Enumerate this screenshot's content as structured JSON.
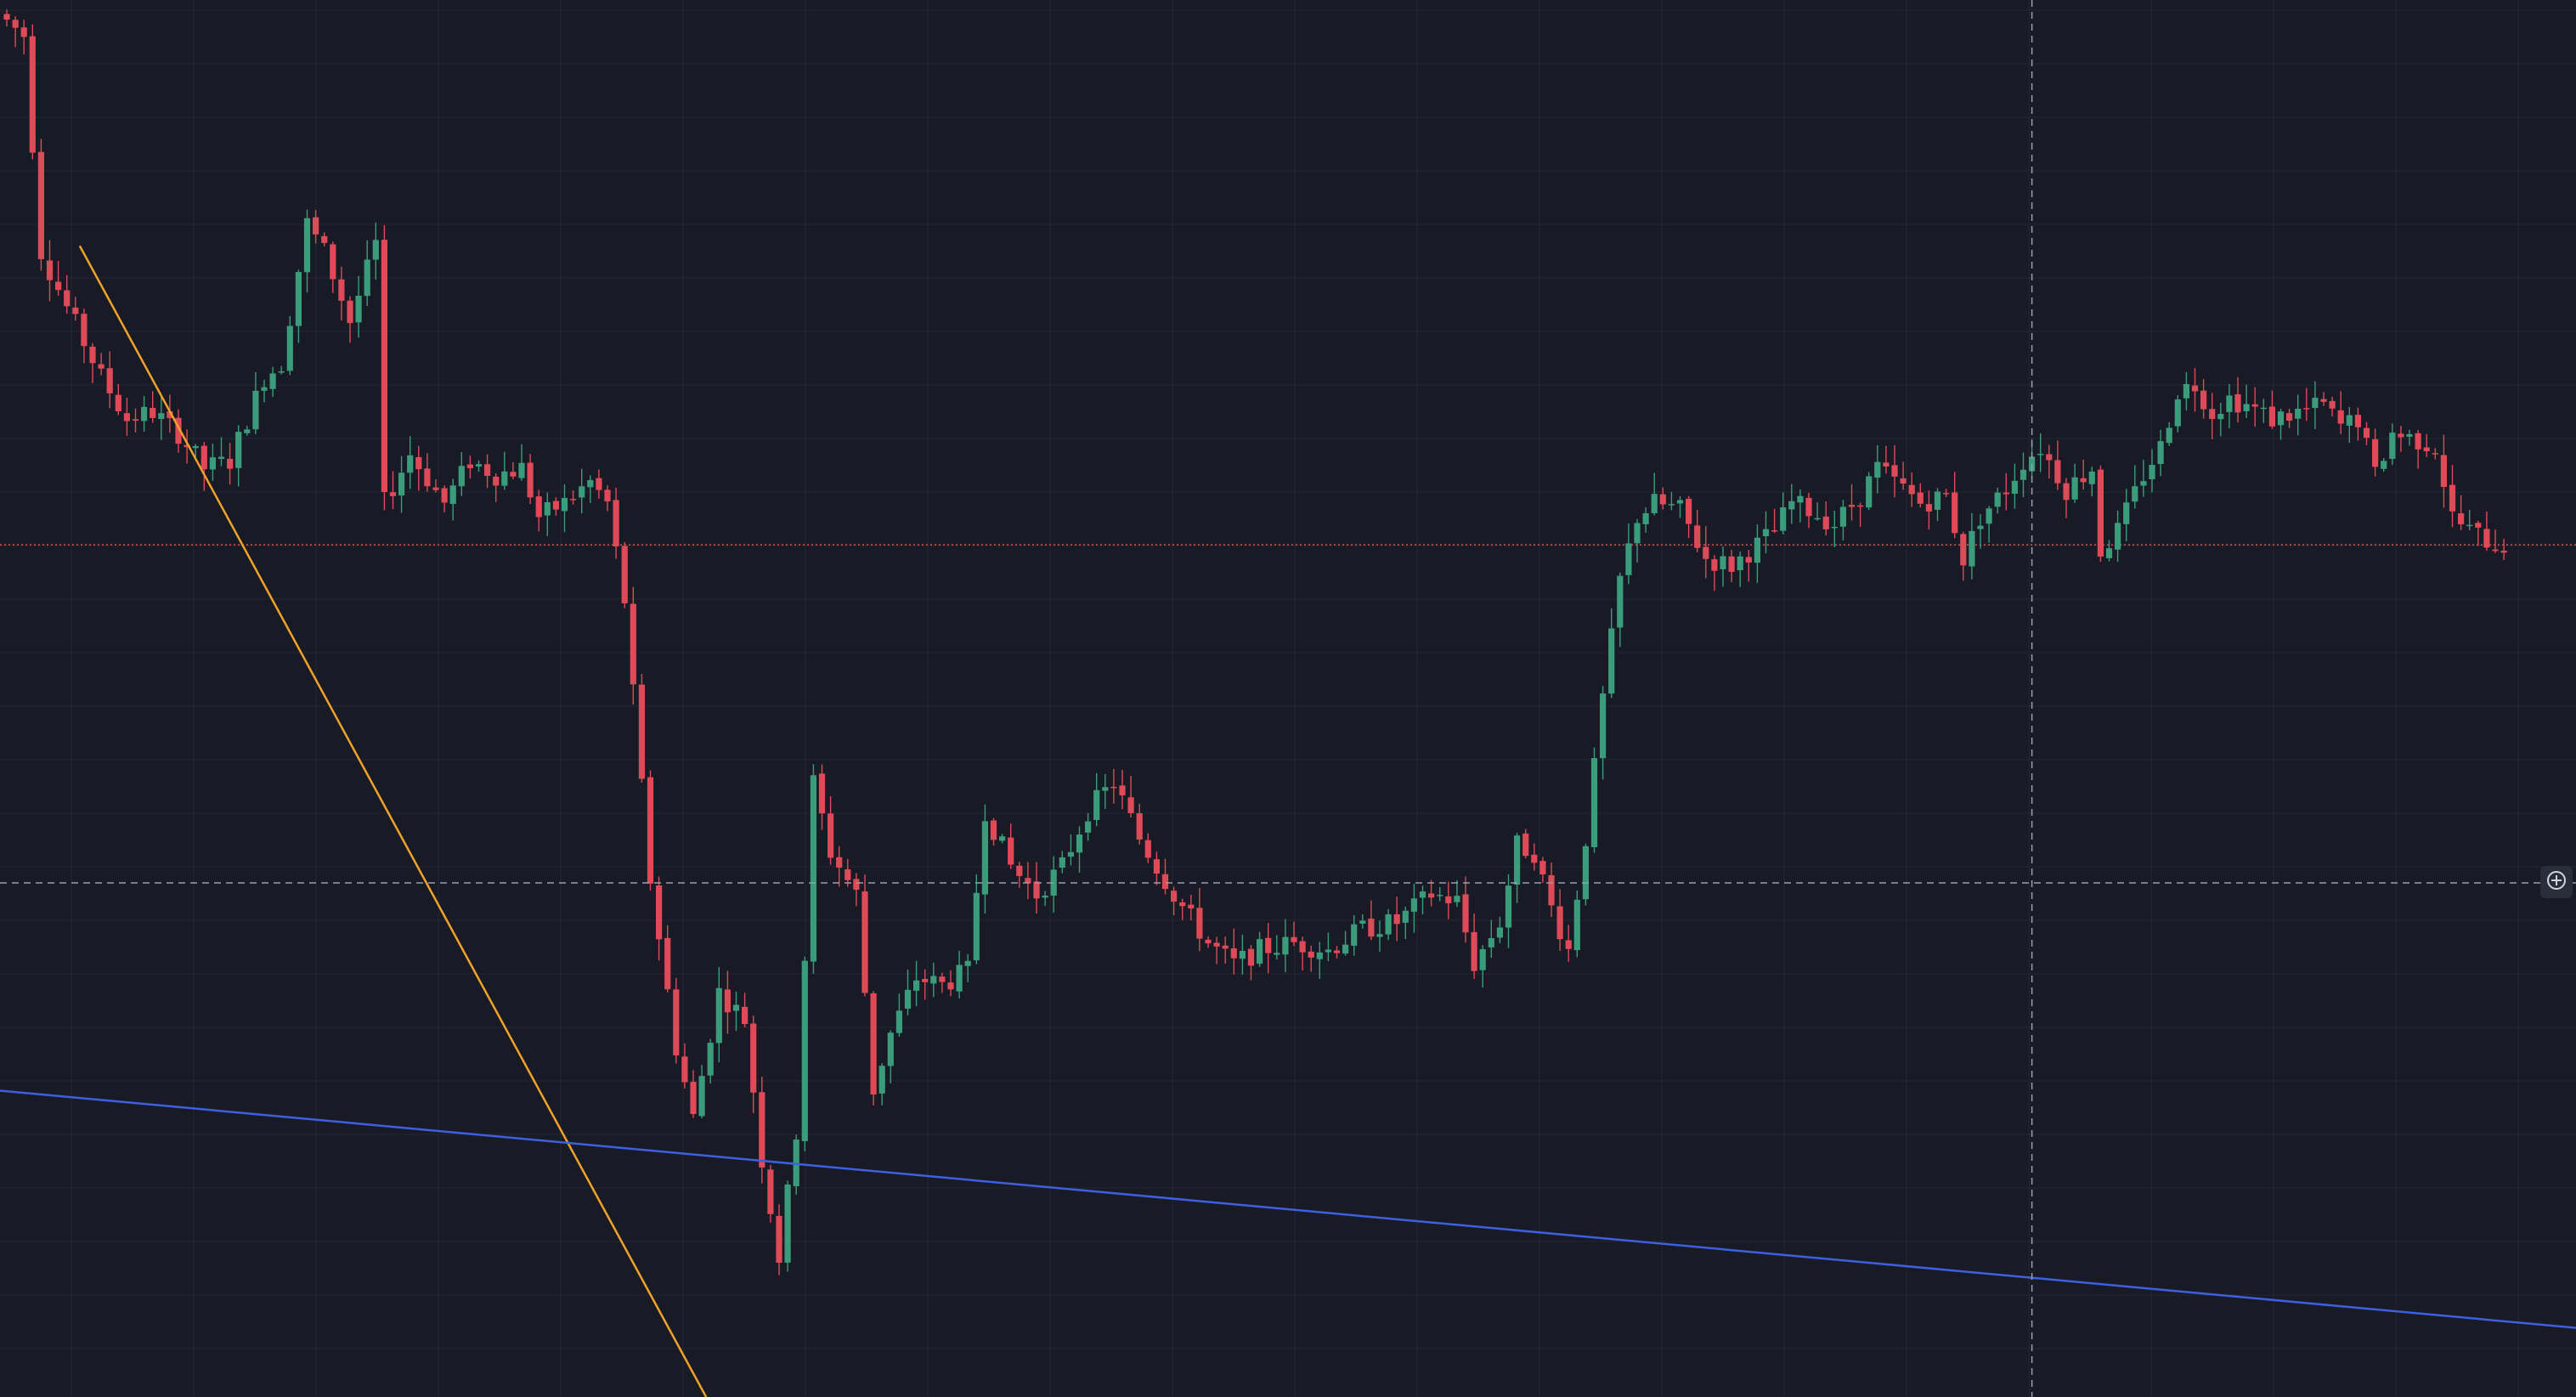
{
  "colors": {
    "background": "#181b25",
    "grid": "#242733",
    "up": "#3b9c7c",
    "down": "#de4a57",
    "price_line": "#d9534f",
    "crosshair": "#9aa0ac",
    "trendline_down": "#f0a22a",
    "trendline_support": "#3d5fe0"
  },
  "icons": {
    "crosshair_add": "plus-circle-icon"
  },
  "chart_data": {
    "type": "candlestick",
    "title": "",
    "xlabel": "",
    "ylabel": "",
    "grid": true,
    "ylim": [
      0,
      100
    ],
    "last_price": 61,
    "crosshair": {
      "bar_index": 236,
      "price": 36.8
    },
    "trendlines": [
      {
        "name": "",
        "color": "#f0a22a",
        "from": {
          "bar_index": 8.5,
          "price": 82.4
        },
        "to": {
          "bar_index": 81.5,
          "price": 0
        }
      },
      {
        "name": "",
        "color": "#3d5fe0",
        "from": {
          "bar_index": -2,
          "price": 22
        },
        "to": {
          "bar_index": 302,
          "price": 4.8
        }
      }
    ],
    "anchors": [
      [
        0,
        99
      ],
      [
        3,
        97.5
      ],
      [
        5,
        82
      ],
      [
        8,
        78
      ],
      [
        12,
        73
      ],
      [
        15,
        70
      ],
      [
        18,
        70.5
      ],
      [
        21,
        69
      ],
      [
        24,
        66.5
      ],
      [
        27,
        67
      ],
      [
        31,
        73
      ],
      [
        33,
        74
      ],
      [
        36,
        84
      ],
      [
        38,
        82
      ],
      [
        41,
        77
      ],
      [
        44,
        82.5
      ],
      [
        45,
        64
      ],
      [
        48,
        67.5
      ],
      [
        52,
        64
      ],
      [
        55,
        67
      ],
      [
        58,
        66
      ],
      [
        61,
        66.5
      ],
      [
        63,
        63
      ],
      [
        66,
        64
      ],
      [
        69,
        65.5
      ],
      [
        71,
        64
      ],
      [
        73,
        57
      ],
      [
        76,
        37
      ],
      [
        79,
        25
      ],
      [
        81,
        20
      ],
      [
        84,
        29
      ],
      [
        87,
        27
      ],
      [
        89,
        17
      ],
      [
        91,
        10
      ],
      [
        93,
        19
      ],
      [
        95,
        44
      ],
      [
        97,
        39
      ],
      [
        100,
        36
      ],
      [
        102,
        22
      ],
      [
        104,
        26
      ],
      [
        107,
        30
      ],
      [
        110,
        29.5
      ],
      [
        113,
        30.5
      ],
      [
        115,
        42
      ],
      [
        118,
        38
      ],
      [
        121,
        36
      ],
      [
        124,
        38
      ],
      [
        127,
        42
      ],
      [
        130,
        44
      ],
      [
        133,
        40
      ],
      [
        137,
        36
      ],
      [
        141,
        32.5
      ],
      [
        144,
        31
      ],
      [
        147,
        32
      ],
      [
        151,
        32.5
      ],
      [
        155,
        32
      ],
      [
        159,
        33.5
      ],
      [
        163,
        34
      ],
      [
        167,
        36
      ],
      [
        170,
        35.5
      ],
      [
        172,
        31
      ],
      [
        175,
        34
      ],
      [
        177,
        39.5
      ],
      [
        179,
        39
      ],
      [
        181,
        35
      ],
      [
        183,
        32
      ],
      [
        185,
        40
      ],
      [
        187,
        50
      ],
      [
        189,
        58.5
      ],
      [
        191,
        63
      ],
      [
        193,
        64
      ],
      [
        196,
        63.5
      ],
      [
        199,
        60
      ],
      [
        202,
        59.5
      ],
      [
        204,
        60.5
      ],
      [
        207,
        62
      ],
      [
        209,
        64
      ],
      [
        211,
        63.5
      ],
      [
        214,
        62.5
      ],
      [
        217,
        64.5
      ],
      [
        219,
        66.5
      ],
      [
        222,
        65
      ],
      [
        224,
        64
      ],
      [
        227,
        64.5
      ],
      [
        229,
        60
      ],
      [
        231,
        63
      ],
      [
        234,
        65
      ],
      [
        236,
        67
      ],
      [
        238,
        68
      ],
      [
        241,
        65
      ],
      [
        244,
        66.5
      ],
      [
        245,
        60.5
      ],
      [
        247,
        62
      ],
      [
        250,
        66
      ],
      [
        252,
        68
      ],
      [
        254,
        72
      ],
      [
        256,
        72.5
      ],
      [
        258,
        70.5
      ],
      [
        260,
        71.5
      ],
      [
        262,
        71
      ],
      [
        265,
        70
      ],
      [
        268,
        70.5
      ],
      [
        271,
        71
      ],
      [
        273,
        69.5
      ],
      [
        275,
        70
      ],
      [
        277,
        66
      ],
      [
        279,
        69
      ],
      [
        282,
        68.5
      ],
      [
        284,
        68
      ],
      [
        286,
        63
      ],
      [
        288,
        62
      ],
      [
        291,
        61
      ]
    ],
    "noise_seed": 7,
    "bar_count": 292
  }
}
